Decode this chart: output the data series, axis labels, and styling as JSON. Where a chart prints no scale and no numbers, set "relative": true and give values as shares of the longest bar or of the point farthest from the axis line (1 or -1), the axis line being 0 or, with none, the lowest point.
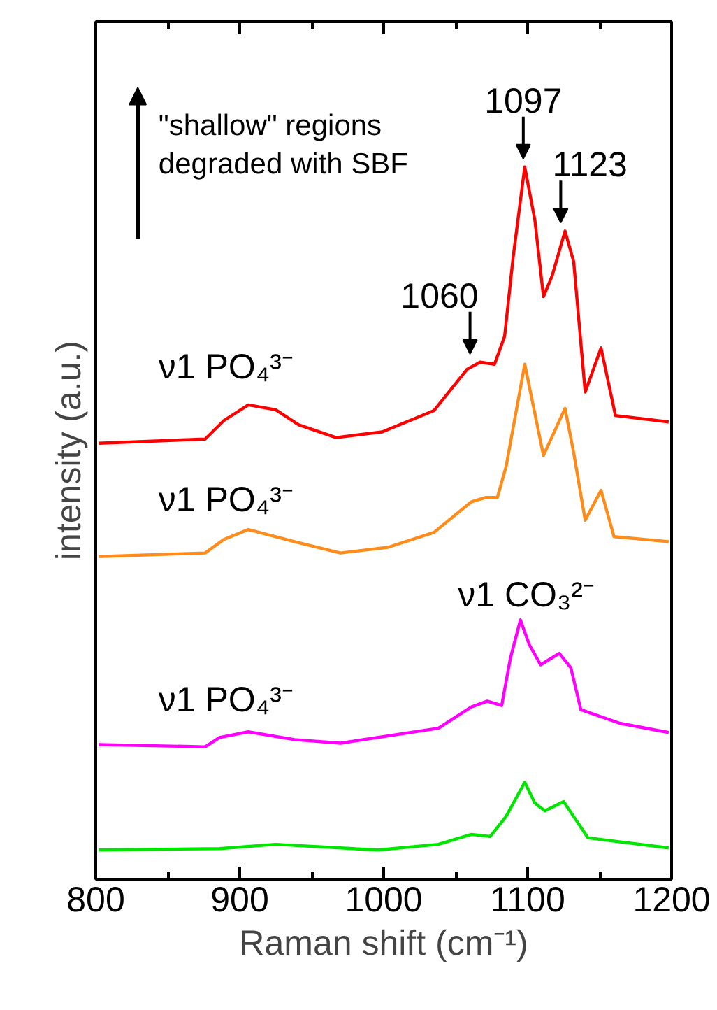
{
  "chart_data": {
    "type": "line",
    "relative": true,
    "xlabel": "Raman shift (cm⁻¹)",
    "ylabel": "intensity (a.u.)",
    "xlim": [
      800,
      1200
    ],
    "xticks": [
      800,
      900,
      1000,
      1100,
      1200
    ],
    "grid": false,
    "series": [
      {
        "color": "#ff0000",
        "x": [
          802,
          876,
          889,
          906,
          925,
          941,
          967,
          999,
          1035,
          1058,
          1067,
          1077,
          1084,
          1090,
          1098,
          1105,
          1111,
          1117,
          1126,
          1132,
          1140,
          1151,
          1161,
          1198
        ],
        "values": [
          0.612,
          0.618,
          0.644,
          0.666,
          0.659,
          0.638,
          0.62,
          0.628,
          0.658,
          0.716,
          0.726,
          0.723,
          0.762,
          0.874,
          1.0,
          0.926,
          0.818,
          0.847,
          0.91,
          0.867,
          0.684,
          0.746,
          0.651,
          0.642
        ]
      },
      {
        "color": "#ff8c1a",
        "x": [
          802,
          876,
          889,
          906,
          938,
          970,
          1003,
          1035,
          1061,
          1071,
          1079,
          1085,
          1098,
          1111,
          1126,
          1132,
          1140,
          1151,
          1160,
          1198
        ],
        "values": [
          0.453,
          0.458,
          0.477,
          0.491,
          0.474,
          0.458,
          0.466,
          0.487,
          0.53,
          0.536,
          0.536,
          0.579,
          0.723,
          0.595,
          0.661,
          0.599,
          0.504,
          0.546,
          0.481,
          0.474
        ]
      },
      {
        "color": "#ff00ff",
        "x": [
          802,
          876,
          886,
          906,
          938,
          970,
          1038,
          1061,
          1072,
          1082,
          1088,
          1095,
          1101,
          1109,
          1122,
          1130,
          1137,
          1164,
          1198
        ],
        "values": [
          0.189,
          0.186,
          0.199,
          0.207,
          0.196,
          0.191,
          0.212,
          0.242,
          0.25,
          0.244,
          0.31,
          0.364,
          0.33,
          0.301,
          0.317,
          0.297,
          0.238,
          0.219,
          0.206
        ]
      },
      {
        "color": "#00e600",
        "x": [
          802,
          886,
          925,
          996,
          1038,
          1061,
          1074,
          1085,
          1098,
          1105,
          1112,
          1125,
          1132,
          1142,
          1198
        ],
        "values": [
          0.041,
          0.043,
          0.049,
          0.041,
          0.049,
          0.063,
          0.06,
          0.088,
          0.136,
          0.107,
          0.096,
          0.109,
          0.088,
          0.058,
          0.044
        ]
      }
    ],
    "annotations": [
      "\"shallow\" regions\ndegraded with SBF",
      {
        "text": "1060",
        "x": 1060,
        "y": 0.726
      },
      {
        "text": "1097",
        "x": 1097,
        "y": 1.0
      },
      {
        "text": "1123",
        "x": 1123,
        "y": 0.91
      },
      "ν1 PO₄³⁻",
      "ν1 PO₄³⁻",
      "ν1 CO₃²⁻",
      "ν1 PO₄³⁻"
    ]
  }
}
